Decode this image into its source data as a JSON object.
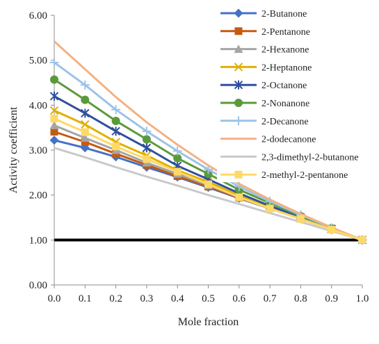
{
  "chart_data": {
    "type": "line",
    "xlabel": "Mole fraction",
    "ylabel": "Activity coefficient",
    "xlim": [
      0.0,
      1.0
    ],
    "ylim": [
      0.0,
      6.0
    ],
    "x_ticks": [
      "0.0",
      "0.1",
      "0.2",
      "0.3",
      "0.4",
      "0.5",
      "0.6",
      "0.7",
      "0.8",
      "0.9",
      "1.0"
    ],
    "y_ticks": [
      "0.00",
      "1.00",
      "2.00",
      "3.00",
      "4.00",
      "5.00",
      "6.00"
    ],
    "grid": false,
    "legend_position": "right",
    "x": [
      0.0,
      0.1,
      0.2,
      0.3,
      0.4,
      0.5,
      0.6,
      0.7,
      0.8,
      0.9,
      1.0
    ],
    "series": [
      {
        "name": "2-Butanone",
        "color": "#4472C4",
        "marker": "diamond",
        "values": [
          3.22,
          3.05,
          2.85,
          2.62,
          2.4,
          2.17,
          1.93,
          1.7,
          1.47,
          1.23,
          1.0
        ]
      },
      {
        "name": "2-Pentanone",
        "color": "#C55A11",
        "marker": "square",
        "values": [
          3.41,
          3.18,
          2.92,
          2.67,
          2.42,
          2.19,
          1.94,
          1.71,
          1.47,
          1.24,
          1.0
        ]
      },
      {
        "name": "2-Hexanone",
        "color": "#A5A5A5",
        "marker": "triangle",
        "values": [
          3.55,
          3.27,
          3.0,
          2.72,
          2.47,
          2.22,
          1.96,
          1.72,
          1.48,
          1.24,
          1.0
        ]
      },
      {
        "name": "2-Heptanone",
        "color": "#E0B000",
        "marker": "x",
        "values": [
          3.88,
          3.57,
          3.18,
          2.88,
          2.55,
          2.29,
          1.99,
          1.73,
          1.48,
          1.24,
          1.0
        ]
      },
      {
        "name": "2-Octanone",
        "color": "#2F4F9F",
        "marker": "asterisk",
        "values": [
          4.2,
          3.82,
          3.42,
          3.05,
          2.65,
          2.35,
          2.04,
          1.76,
          1.5,
          1.25,
          1.0
        ]
      },
      {
        "name": "2-Nonanone",
        "color": "#5B9A3A",
        "marker": "circle",
        "values": [
          4.57,
          4.12,
          3.65,
          3.24,
          2.82,
          2.47,
          2.12,
          1.82,
          1.53,
          1.26,
          1.0
        ]
      },
      {
        "name": "2-Decanone",
        "color": "#9DC3E6",
        "marker": "plus",
        "values": [
          4.95,
          4.45,
          3.9,
          3.42,
          2.98,
          2.57,
          2.19,
          1.86,
          1.56,
          1.27,
          1.0
        ]
      },
      {
        "name": "2-dodecanone",
        "color": "#F4B183",
        "marker": "none",
        "values": [
          5.42,
          4.8,
          4.18,
          3.62,
          3.12,
          2.66,
          2.25,
          1.9,
          1.58,
          1.28,
          1.0
        ]
      },
      {
        "name": "2,3-dimethyl-2-butanone",
        "color": "#C9C9C9",
        "marker": "none",
        "values": [
          3.05,
          2.84,
          2.62,
          2.41,
          2.21,
          2.0,
          1.8,
          1.6,
          1.4,
          1.2,
          1.0
        ]
      },
      {
        "name": "2-methyl-2-pentanone",
        "color": "#FFD966",
        "marker": "square",
        "values": [
          3.7,
          3.4,
          3.08,
          2.8,
          2.52,
          2.24,
          1.95,
          1.7,
          1.47,
          1.23,
          1.0
        ]
      }
    ],
    "reference_line": {
      "y": 1.0,
      "color": "#000000"
    }
  }
}
